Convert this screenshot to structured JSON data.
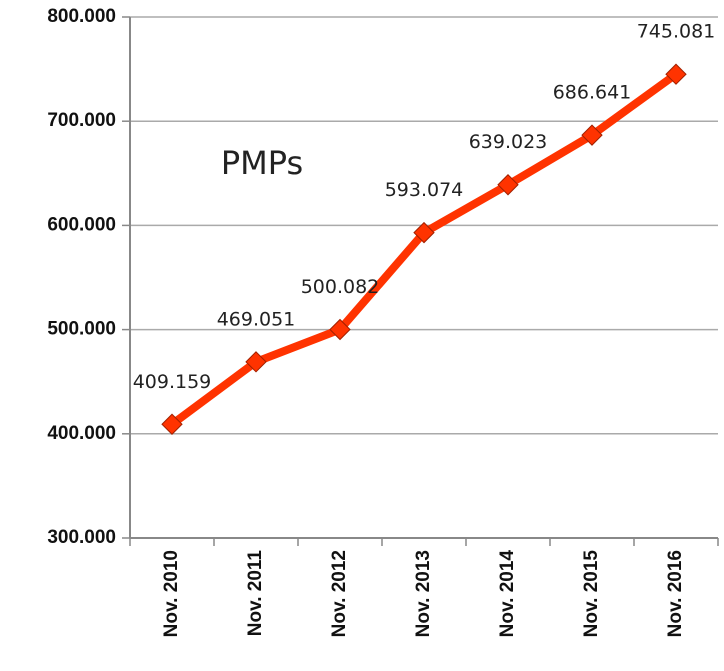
{
  "chart_data": {
    "type": "line",
    "title": "PMPs",
    "categories": [
      "Nov. 2010",
      "Nov. 2011",
      "Nov. 2012",
      "Nov. 2013",
      "Nov. 2014",
      "Nov. 2015",
      "Nov. 2016"
    ],
    "series": [
      {
        "name": "PMPs",
        "color": "#ff3300",
        "values": [
          409159,
          469051,
          500082,
          593074,
          639023,
          686641,
          745081
        ],
        "value_labels": [
          "409.159",
          "469.051",
          "500.082",
          "593.074",
          "639.023",
          "686.641",
          "745.081"
        ]
      }
    ],
    "ylim": [
      300000,
      800000
    ],
    "yticks": [
      {
        "value": 300000,
        "label": "300.000"
      },
      {
        "value": 400000,
        "label": "400.000"
      },
      {
        "value": 500000,
        "label": "500.000"
      },
      {
        "value": 600000,
        "label": "600.000"
      },
      {
        "value": 700000,
        "label": "700.000"
      },
      {
        "value": 800000,
        "label": "800.000"
      }
    ],
    "grid": true
  }
}
